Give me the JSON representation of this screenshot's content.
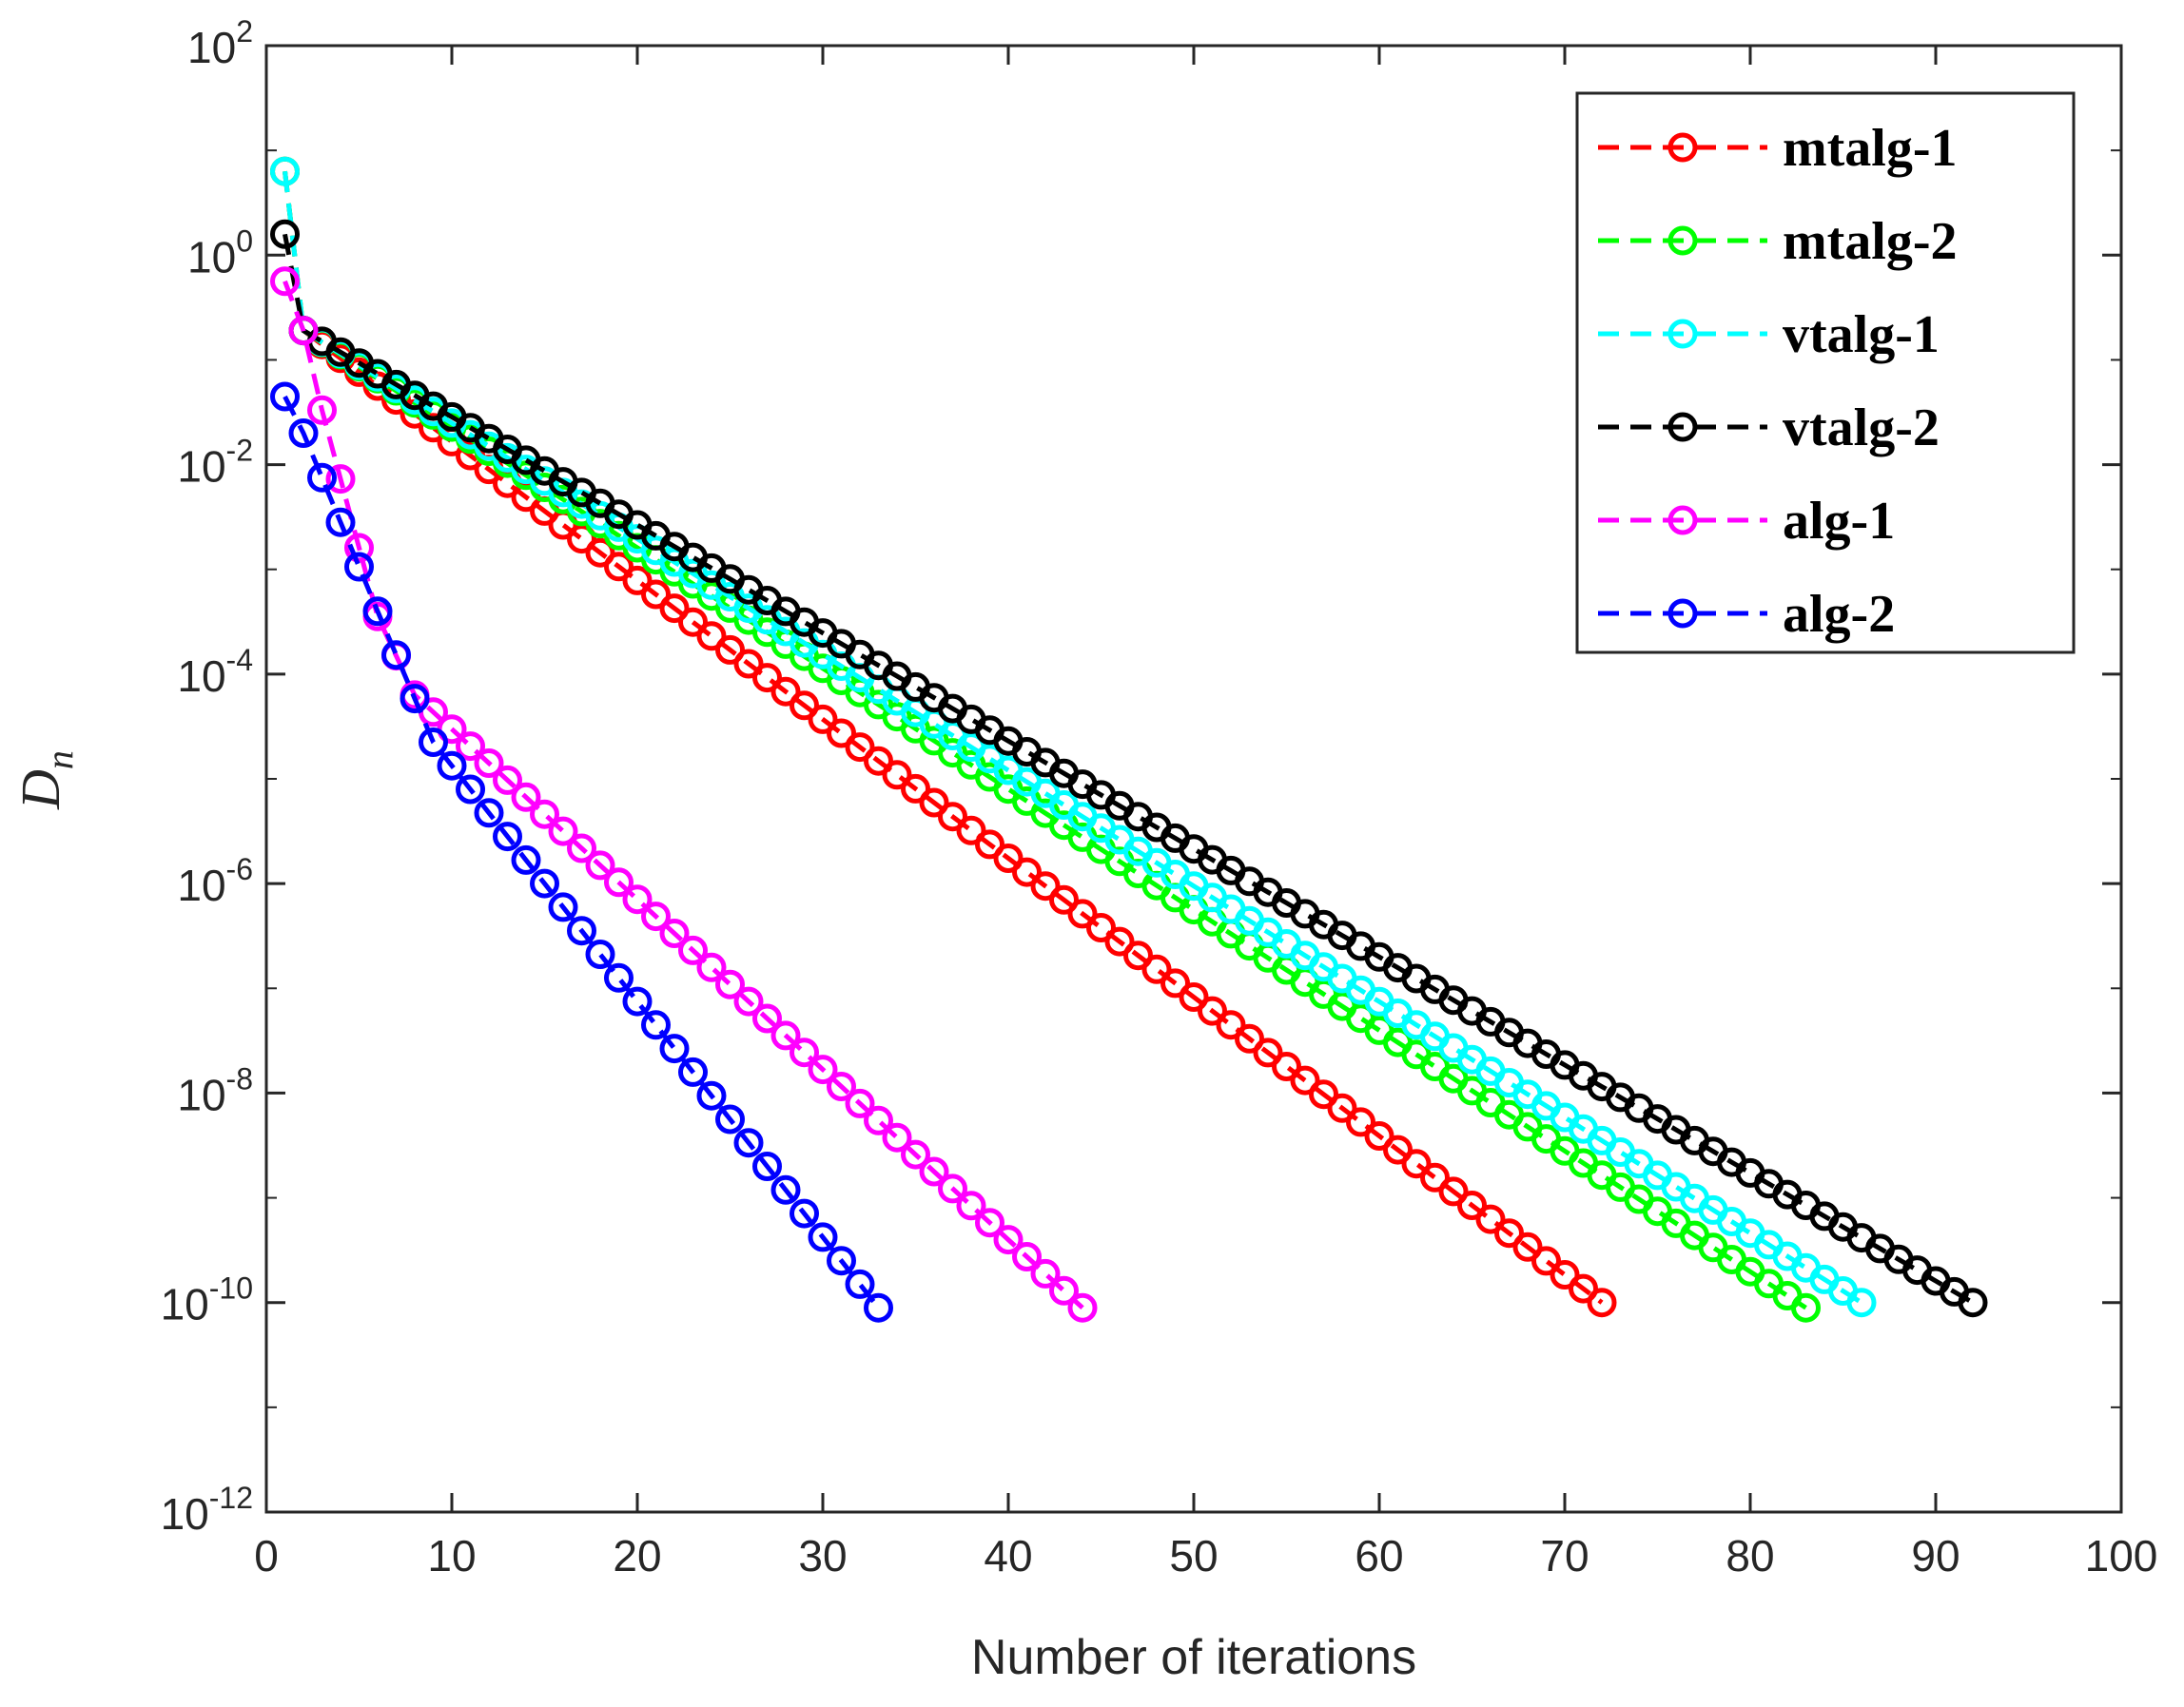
{
  "chart_data": {
    "type": "line",
    "title": "",
    "xlabel": "Number of iterations",
    "ylabel": "D",
    "ylabel_subscript": "n",
    "yscale": "log",
    "xlim": [
      0,
      100
    ],
    "ylim_exponent": [
      -12,
      2
    ],
    "x_ticks": [
      "0",
      "10",
      "20",
      "30",
      "40",
      "50",
      "60",
      "70",
      "80",
      "90",
      "100"
    ],
    "y_ticks": [
      {
        "base": "10",
        "exp": "2"
      },
      {
        "base": "10",
        "exp": "0"
      },
      {
        "base": "10",
        "exp": "-2"
      },
      {
        "base": "10",
        "exp": "-4"
      },
      {
        "base": "10",
        "exp": "-6"
      },
      {
        "base": "10",
        "exp": "-8"
      },
      {
        "base": "10",
        "exp": "-10"
      },
      {
        "base": "10",
        "exp": "-12"
      }
    ],
    "legend_position": "top-right",
    "series": [
      {
        "name": "mtalg-1",
        "color": "#ff0000",
        "points_log10": [
          [
            1,
            0.8
          ],
          [
            2,
            -0.72
          ],
          [
            72,
            -10.0
          ]
        ]
      },
      {
        "name": "mtalg-2",
        "color": "#00ff00",
        "points_log10": [
          [
            1,
            0.8
          ],
          [
            2,
            -0.72
          ],
          [
            83,
            -10.05
          ]
        ]
      },
      {
        "name": "vtalg-1",
        "color": "#00ffff",
        "points_log10": [
          [
            1,
            0.8
          ],
          [
            2,
            -0.72
          ],
          [
            86,
            -10.0
          ]
        ]
      },
      {
        "name": "vtalg-2",
        "color": "#000000",
        "points_log10": [
          [
            1,
            0.2
          ],
          [
            2,
            -0.72
          ],
          [
            92,
            -10.0
          ]
        ]
      },
      {
        "name": "alg-1",
        "color": "#ff00ff",
        "points_log10": [
          [
            1,
            -0.25
          ],
          [
            2,
            -0.72
          ],
          [
            3,
            -1.48
          ],
          [
            6,
            -3.45
          ],
          [
            8,
            -4.2
          ],
          [
            44,
            -10.05
          ]
        ]
      },
      {
        "name": "alg-2",
        "color": "#0000ff",
        "points_log10": [
          [
            1,
            -1.35
          ],
          [
            2,
            -1.7
          ],
          [
            6,
            -3.4
          ],
          [
            9,
            -4.65
          ],
          [
            33,
            -10.05
          ]
        ]
      }
    ]
  }
}
